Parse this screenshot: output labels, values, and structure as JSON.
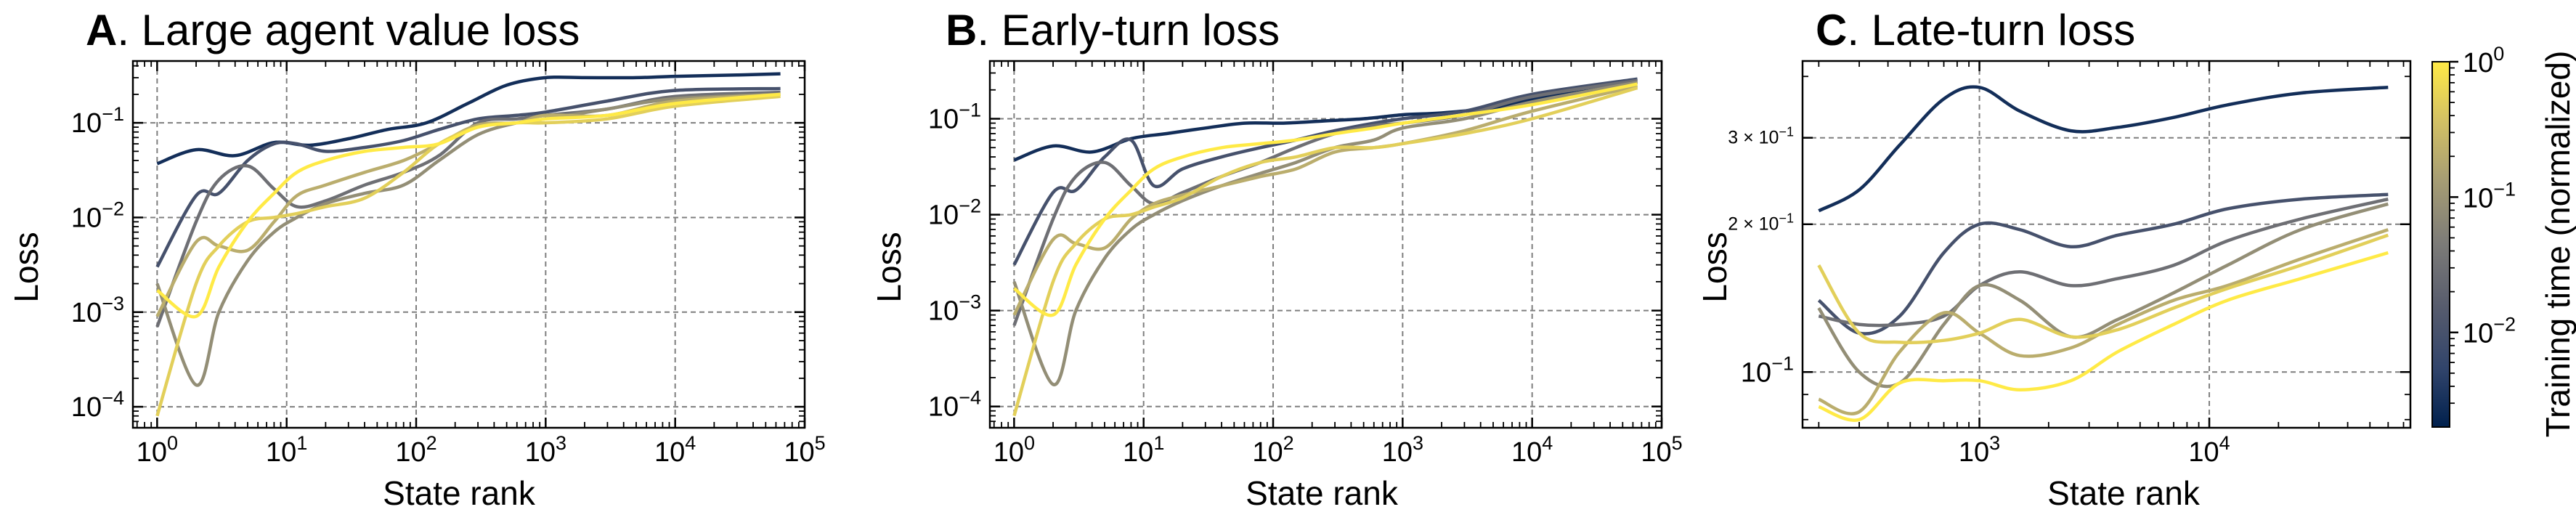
{
  "colors": {
    "grid": "#7f7f7f",
    "colormap_stops": [
      "#00204d",
      "#31446b",
      "#575c6d",
      "#7c7b78",
      "#a59c74",
      "#d3c164",
      "#ffea46"
    ]
  },
  "colorbar": {
    "label": "Training time (normalized)",
    "scale": "log",
    "colormap": "cividis",
    "ticks": [
      {
        "value": 0.01,
        "base": "10",
        "exp": "−2"
      },
      {
        "value": 0.1,
        "base": "10",
        "exp": "−1"
      },
      {
        "value": 1,
        "base": "10",
        "exp": "0"
      }
    ],
    "range": [
      0.002,
      1
    ]
  },
  "chart_data": [
    {
      "type": "line",
      "title_letter": "A",
      "title_rest": ". Large agent value loss",
      "xlabel": "State rank",
      "ylabel": "Loss",
      "xscale": "log",
      "yscale": "log",
      "xlim": [
        0.65,
        100000
      ],
      "ylim": [
        6e-05,
        0.45
      ],
      "xticks": [
        {
          "value": 1,
          "base": "10",
          "exp": "0"
        },
        {
          "value": 10,
          "base": "10",
          "exp": "1"
        },
        {
          "value": 100,
          "base": "10",
          "exp": "2"
        },
        {
          "value": 1000,
          "base": "10",
          "exp": "3"
        },
        {
          "value": 10000,
          "base": "10",
          "exp": "4"
        },
        {
          "value": 100000,
          "base": "10",
          "exp": "5"
        }
      ],
      "yticks": [
        {
          "value": 0.0001,
          "base": "10",
          "exp": "−4"
        },
        {
          "value": 0.001,
          "base": "10",
          "exp": "−3"
        },
        {
          "value": 0.01,
          "base": "10",
          "exp": "−2"
        },
        {
          "value": 0.1,
          "base": "10",
          "exp": "−1"
        }
      ],
      "grid": true,
      "series": [
        {
          "training_time": 0.003,
          "x": [
            1,
            2,
            4,
            8,
            15,
            30,
            60,
            120,
            250,
            500,
            1000,
            2000,
            5000,
            10000,
            30000,
            65000
          ],
          "y": [
            0.037,
            0.052,
            0.045,
            0.062,
            0.058,
            0.068,
            0.085,
            0.1,
            0.16,
            0.25,
            0.3,
            0.3,
            0.3,
            0.31,
            0.32,
            0.33
          ]
        },
        {
          "training_time": 0.01,
          "x": [
            1,
            2,
            3,
            5,
            8,
            12,
            20,
            40,
            80,
            150,
            300,
            600,
            1000,
            3000,
            10000,
            65000
          ],
          "y": [
            0.003,
            0.017,
            0.018,
            0.04,
            0.06,
            0.06,
            0.05,
            0.055,
            0.065,
            0.085,
            0.11,
            0.12,
            0.13,
            0.17,
            0.22,
            0.23
          ]
        },
        {
          "training_time": 0.03,
          "x": [
            1,
            2,
            3,
            5,
            8,
            12,
            20,
            40,
            80,
            150,
            300,
            600,
            1000,
            3000,
            10000,
            65000
          ],
          "y": [
            0.0007,
            0.009,
            0.025,
            0.035,
            0.02,
            0.013,
            0.015,
            0.022,
            0.03,
            0.045,
            0.1,
            0.11,
            0.12,
            0.14,
            0.19,
            0.21
          ]
        },
        {
          "training_time": 0.08,
          "x": [
            1,
            2,
            3,
            5,
            8,
            12,
            20,
            40,
            80,
            150,
            300,
            600,
            1000,
            3000,
            10000,
            65000
          ],
          "y": [
            0.002,
            0.00017,
            0.001,
            0.0035,
            0.007,
            0.01,
            0.014,
            0.018,
            0.022,
            0.04,
            0.075,
            0.1,
            0.11,
            0.14,
            0.18,
            0.2
          ]
        },
        {
          "training_time": 0.2,
          "x": [
            1,
            2,
            3,
            5,
            8,
            12,
            20,
            40,
            80,
            150,
            300,
            600,
            1000,
            3000,
            10000,
            65000
          ],
          "y": [
            0.0009,
            0.0055,
            0.005,
            0.0045,
            0.009,
            0.017,
            0.022,
            0.03,
            0.04,
            0.06,
            0.095,
            0.1,
            0.12,
            0.12,
            0.17,
            0.2
          ]
        },
        {
          "training_time": 0.5,
          "x": [
            1,
            2,
            3,
            5,
            8,
            12,
            20,
            40,
            80,
            150,
            300,
            600,
            1000,
            3000,
            10000,
            65000
          ],
          "y": [
            8e-05,
            0.002,
            0.005,
            0.009,
            0.01,
            0.011,
            0.013,
            0.016,
            0.03,
            0.06,
            0.09,
            0.1,
            0.1,
            0.11,
            0.15,
            0.19
          ]
        },
        {
          "training_time": 1.0,
          "x": [
            1,
            2,
            3,
            5,
            8,
            12,
            20,
            40,
            80,
            150,
            300,
            600,
            1000,
            3000,
            10000,
            65000
          ],
          "y": [
            0.0017,
            0.0009,
            0.003,
            0.009,
            0.018,
            0.03,
            0.04,
            0.05,
            0.055,
            0.06,
            0.09,
            0.1,
            0.11,
            0.12,
            0.16,
            0.2
          ]
        }
      ]
    },
    {
      "type": "line",
      "title_letter": "B",
      "title_rest": ". Early-turn loss",
      "xlabel": "State rank",
      "ylabel": "Loss",
      "xscale": "log",
      "yscale": "log",
      "xlim": [
        0.65,
        100000
      ],
      "ylim": [
        6e-05,
        0.4
      ],
      "xticks": [
        {
          "value": 1,
          "base": "10",
          "exp": "0"
        },
        {
          "value": 10,
          "base": "10",
          "exp": "1"
        },
        {
          "value": 100,
          "base": "10",
          "exp": "2"
        },
        {
          "value": 1000,
          "base": "10",
          "exp": "3"
        },
        {
          "value": 10000,
          "base": "10",
          "exp": "4"
        },
        {
          "value": 100000,
          "base": "10",
          "exp": "5"
        }
      ],
      "yticks": [
        {
          "value": 0.0001,
          "base": "10",
          "exp": "−4"
        },
        {
          "value": 0.001,
          "base": "10",
          "exp": "−3"
        },
        {
          "value": 0.01,
          "base": "10",
          "exp": "−2"
        },
        {
          "value": 0.1,
          "base": "10",
          "exp": "−1"
        }
      ],
      "grid": true,
      "series": [
        {
          "training_time": 0.003,
          "x": [
            1,
            2,
            4,
            8,
            15,
            30,
            60,
            120,
            250,
            500,
            1000,
            2000,
            5000,
            10000,
            30000,
            65000
          ],
          "y": [
            0.037,
            0.052,
            0.045,
            0.062,
            0.07,
            0.08,
            0.09,
            0.09,
            0.095,
            0.1,
            0.11,
            0.115,
            0.13,
            0.16,
            0.2,
            0.24
          ]
        },
        {
          "training_time": 0.01,
          "x": [
            1,
            2,
            3,
            5,
            8,
            12,
            20,
            40,
            80,
            150,
            300,
            600,
            1000,
            3000,
            10000,
            65000
          ],
          "y": [
            0.003,
            0.017,
            0.018,
            0.04,
            0.06,
            0.02,
            0.03,
            0.04,
            0.05,
            0.06,
            0.075,
            0.09,
            0.1,
            0.12,
            0.18,
            0.26
          ]
        },
        {
          "training_time": 0.03,
          "x": [
            1,
            2,
            3,
            5,
            8,
            12,
            20,
            40,
            80,
            150,
            300,
            600,
            1000,
            3000,
            10000,
            65000
          ],
          "y": [
            0.0007,
            0.009,
            0.025,
            0.035,
            0.02,
            0.013,
            0.017,
            0.025,
            0.035,
            0.05,
            0.07,
            0.085,
            0.09,
            0.11,
            0.17,
            0.25
          ]
        },
        {
          "training_time": 0.08,
          "x": [
            1,
            2,
            3,
            5,
            8,
            12,
            20,
            40,
            80,
            150,
            300,
            600,
            1000,
            3000,
            10000,
            65000
          ],
          "y": [
            0.002,
            0.00017,
            0.001,
            0.0035,
            0.007,
            0.01,
            0.014,
            0.02,
            0.027,
            0.035,
            0.05,
            0.06,
            0.08,
            0.1,
            0.15,
            0.24
          ]
        },
        {
          "training_time": 0.2,
          "x": [
            1,
            2,
            3,
            5,
            8,
            12,
            20,
            40,
            80,
            150,
            300,
            600,
            1000,
            3000,
            10000,
            65000
          ],
          "y": [
            0.0009,
            0.0055,
            0.005,
            0.0045,
            0.009,
            0.013,
            0.016,
            0.02,
            0.025,
            0.03,
            0.045,
            0.05,
            0.055,
            0.075,
            0.12,
            0.22
          ]
        },
        {
          "training_time": 0.5,
          "x": [
            1,
            2,
            3,
            5,
            8,
            12,
            20,
            40,
            80,
            150,
            300,
            600,
            1000,
            3000,
            10000,
            65000
          ],
          "y": [
            8e-05,
            0.002,
            0.005,
            0.009,
            0.01,
            0.012,
            0.015,
            0.025,
            0.035,
            0.04,
            0.05,
            0.05,
            0.055,
            0.07,
            0.1,
            0.21
          ]
        },
        {
          "training_time": 1.0,
          "x": [
            1,
            2,
            3,
            5,
            8,
            12,
            20,
            40,
            80,
            150,
            300,
            600,
            1000,
            3000,
            10000,
            65000
          ],
          "y": [
            0.0017,
            0.0009,
            0.003,
            0.009,
            0.018,
            0.03,
            0.04,
            0.05,
            0.055,
            0.06,
            0.07,
            0.08,
            0.09,
            0.11,
            0.14,
            0.23
          ]
        }
      ]
    },
    {
      "type": "line",
      "title_letter": "C",
      "title_rest": ". Late-turn loss",
      "xlabel": "State rank",
      "ylabel": "Loss",
      "xscale": "log",
      "yscale": "log",
      "xlim": [
        170,
        75000
      ],
      "ylim": [
        0.077,
        0.43
      ],
      "xticks": [
        {
          "value": 1000,
          "base": "10",
          "exp": "3"
        },
        {
          "value": 10000,
          "base": "10",
          "exp": "4"
        }
      ],
      "yticks": [
        {
          "value": 0.1,
          "base": "10",
          "exp": "−1",
          "mant": ""
        },
        {
          "value": 0.2,
          "base": "10",
          "exp": "−1",
          "mant": "2 × "
        },
        {
          "value": 0.3,
          "base": "10",
          "exp": "−1",
          "mant": "3 × "
        }
      ],
      "grid": true,
      "series": [
        {
          "training_time": 0.003,
          "x": [
            200,
            300,
            450,
            700,
            1000,
            1500,
            2500,
            4000,
            7000,
            12000,
            25000,
            60000
          ],
          "y": [
            0.213,
            0.235,
            0.29,
            0.36,
            0.38,
            0.34,
            0.31,
            0.315,
            0.33,
            0.35,
            0.37,
            0.38
          ]
        },
        {
          "training_time": 0.01,
          "x": [
            200,
            300,
            450,
            700,
            1000,
            1500,
            2500,
            4000,
            7000,
            12000,
            25000,
            60000
          ],
          "y": [
            0.14,
            0.12,
            0.13,
            0.175,
            0.2,
            0.195,
            0.18,
            0.19,
            0.2,
            0.215,
            0.225,
            0.23
          ]
        },
        {
          "training_time": 0.03,
          "x": [
            200,
            300,
            450,
            700,
            1000,
            1500,
            2500,
            4000,
            7000,
            12000,
            25000,
            60000
          ],
          "y": [
            0.13,
            0.125,
            0.125,
            0.13,
            0.15,
            0.16,
            0.15,
            0.155,
            0.165,
            0.185,
            0.205,
            0.225
          ]
        },
        {
          "training_time": 0.08,
          "x": [
            200,
            300,
            450,
            700,
            1000,
            1500,
            2500,
            4000,
            7000,
            12000,
            25000,
            60000
          ],
          "y": [
            0.135,
            0.1,
            0.095,
            0.125,
            0.15,
            0.14,
            0.118,
            0.128,
            0.145,
            0.165,
            0.195,
            0.22
          ]
        },
        {
          "training_time": 0.2,
          "x": [
            200,
            300,
            450,
            700,
            1000,
            1500,
            2500,
            4000,
            7000,
            12000,
            25000,
            60000
          ],
          "y": [
            0.088,
            0.083,
            0.11,
            0.132,
            0.12,
            0.108,
            0.112,
            0.125,
            0.14,
            0.15,
            0.17,
            0.195
          ]
        },
        {
          "training_time": 0.5,
          "x": [
            200,
            300,
            450,
            700,
            1000,
            1500,
            2500,
            4000,
            7000,
            12000,
            25000,
            60000
          ],
          "y": [
            0.165,
            0.12,
            0.115,
            0.116,
            0.12,
            0.128,
            0.118,
            0.122,
            0.135,
            0.148,
            0.165,
            0.19
          ]
        },
        {
          "training_time": 1.0,
          "x": [
            200,
            300,
            450,
            700,
            1000,
            1500,
            2500,
            4000,
            7000,
            12000,
            25000,
            60000
          ],
          "y": [
            0.085,
            0.08,
            0.095,
            0.096,
            0.096,
            0.092,
            0.096,
            0.11,
            0.125,
            0.14,
            0.155,
            0.175
          ]
        }
      ]
    }
  ]
}
